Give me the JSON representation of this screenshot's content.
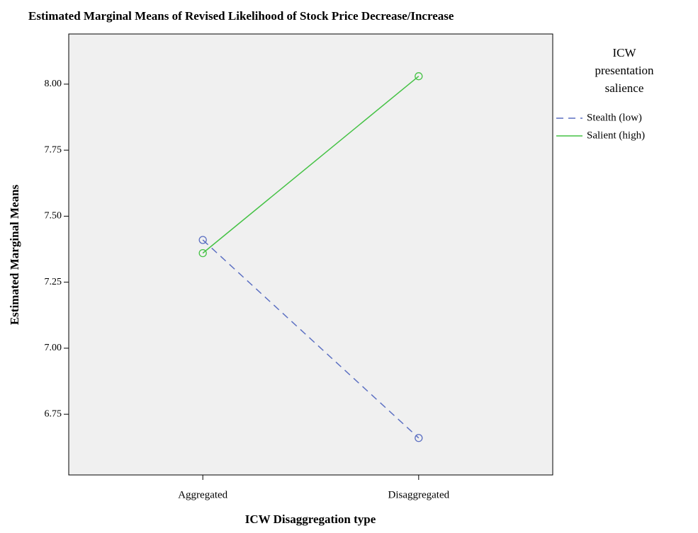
{
  "chart_data": {
    "type": "line",
    "title": "Estimated Marginal Means of Revised Likelihood of Stock Price Decrease/Increase",
    "x_label": "ICW Disaggregation type",
    "y_label": "Estimated Marginal Means",
    "categories": [
      "Aggregated",
      "Disaggregated"
    ],
    "series": [
      {
        "name": "Stealth (low)",
        "color": "#5b6fc2",
        "linestyle": "dashed",
        "values": [
          7.41,
          6.66
        ]
      },
      {
        "name": "Salient (high)",
        "color": "#45c245",
        "linestyle": "solid",
        "values": [
          7.36,
          8.03
        ]
      }
    ],
    "ylim": [
      6.52,
      8.19
    ],
    "yticks": [
      {
        "value": 6.75,
        "label": "6.75"
      },
      {
        "value": 7,
        "label": "7.00"
      },
      {
        "value": 7.25,
        "label": "7.25"
      },
      {
        "value": 7.5,
        "label": "7.50"
      },
      {
        "value": 7.75,
        "label": "7.75"
      },
      {
        "value": 8,
        "label": "8.00"
      }
    ],
    "legend_title": "ICW presentation salience",
    "legend": "right",
    "grid": false
  }
}
